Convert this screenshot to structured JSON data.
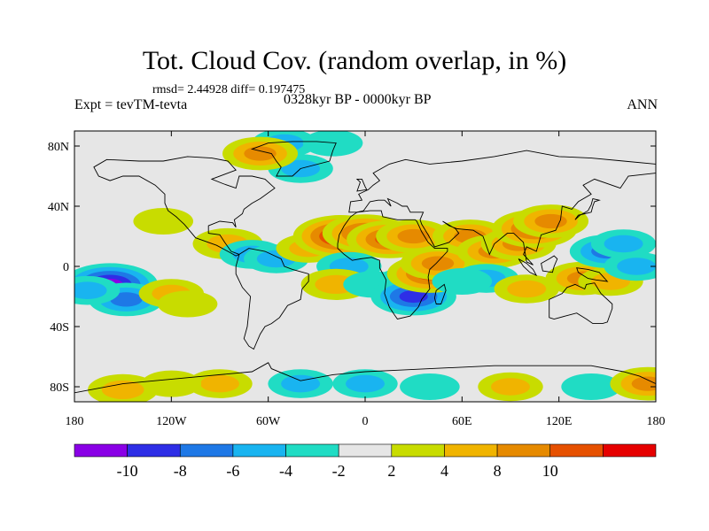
{
  "header": {
    "title": "Tot. Cloud Cov. (random overlap, in %)",
    "stats": "rmsd= 2.44928 diff= 0.197475",
    "experiment": "Expt = tevTM-tevta",
    "period": "0328kyr BP - 0000kyr BP",
    "season": "ANN"
  },
  "colors": {
    "background": "#e6e6e6",
    "coastline": "#000000",
    "levels": [
      "#8a00e6",
      "#2e2ee6",
      "#1e78e6",
      "#19b4f0",
      "#20dcc4",
      "#e6e6e6",
      "#c8dc00",
      "#f0b400",
      "#e68a00",
      "#e65000",
      "#e60000"
    ]
  },
  "chart_data": {
    "type": "heatmap",
    "title": "Tot. Cloud Cov. (random overlap, in %)",
    "x_ticks": [
      "180",
      "120W",
      "60W",
      "0",
      "60E",
      "120E",
      "180"
    ],
    "y_ticks": [
      "80N",
      "40N",
      "0",
      "40S",
      "80S"
    ],
    "xlim": [
      -180,
      180
    ],
    "ylim": [
      -90,
      90
    ],
    "colorbar_labels": [
      "-10",
      "-8",
      "-6",
      "-4",
      "-2",
      "2",
      "4",
      "8",
      "10"
    ],
    "colorbar_bounds": [
      -12,
      -10,
      -8,
      -6,
      -4,
      -2,
      2,
      4,
      6,
      8,
      10,
      12
    ],
    "anomalies": [
      {
        "lon": -158,
        "lat": -12,
        "value": -10
      },
      {
        "lon": -148,
        "lat": -22,
        "value": -6
      },
      {
        "lon": -172,
        "lat": -16,
        "value": -4
      },
      {
        "lon": -120,
        "lat": -18,
        "value": 4
      },
      {
        "lon": -110,
        "lat": -25,
        "value": 3
      },
      {
        "lon": -125,
        "lat": 30,
        "value": 3
      },
      {
        "lon": -85,
        "lat": 15,
        "value": 5
      },
      {
        "lon": -70,
        "lat": 8,
        "value": -4
      },
      {
        "lon": -55,
        "lat": 5,
        "value": -4
      },
      {
        "lon": -35,
        "lat": 12,
        "value": 4
      },
      {
        "lon": -15,
        "lat": 20,
        "value": 10
      },
      {
        "lon": 0,
        "lat": 22,
        "value": 8
      },
      {
        "lon": 15,
        "lat": 18,
        "value": 8
      },
      {
        "lon": 30,
        "lat": 20,
        "value": 6
      },
      {
        "lon": -10,
        "lat": 0,
        "value": -4
      },
      {
        "lon": -18,
        "lat": -12,
        "value": 5
      },
      {
        "lon": 5,
        "lat": -12,
        "value": -3
      },
      {
        "lon": 25,
        "lat": -10,
        "value": -3
      },
      {
        "lon": 30,
        "lat": -20,
        "value": -8
      },
      {
        "lon": 40,
        "lat": -5,
        "value": 8
      },
      {
        "lon": 45,
        "lat": 2,
        "value": 6
      },
      {
        "lon": 65,
        "lat": 20,
        "value": 6
      },
      {
        "lon": 80,
        "lat": 10,
        "value": 6
      },
      {
        "lon": 95,
        "lat": 15,
        "value": 6
      },
      {
        "lon": 105,
        "lat": 25,
        "value": 8
      },
      {
        "lon": 115,
        "lat": 30,
        "value": 6
      },
      {
        "lon": 75,
        "lat": -8,
        "value": -4
      },
      {
        "lon": 60,
        "lat": -10,
        "value": -3
      },
      {
        "lon": 100,
        "lat": -15,
        "value": 4
      },
      {
        "lon": 135,
        "lat": -8,
        "value": 6
      },
      {
        "lon": 152,
        "lat": -10,
        "value": 4
      },
      {
        "lon": 150,
        "lat": 10,
        "value": -6
      },
      {
        "lon": 160,
        "lat": 15,
        "value": -4
      },
      {
        "lon": 168,
        "lat": 0,
        "value": -4
      },
      {
        "lon": -40,
        "lat": 65,
        "value": -4
      },
      {
        "lon": -50,
        "lat": 82,
        "value": -4
      },
      {
        "lon": -20,
        "lat": 82,
        "value": -3
      },
      {
        "lon": -65,
        "lat": 75,
        "value": 6
      },
      {
        "lon": -90,
        "lat": -78,
        "value": 4
      },
      {
        "lon": -120,
        "lat": -78,
        "value": 3
      },
      {
        "lon": -150,
        "lat": -82,
        "value": 5
      },
      {
        "lon": -40,
        "lat": -78,
        "value": -4
      },
      {
        "lon": 0,
        "lat": -78,
        "value": -4
      },
      {
        "lon": 40,
        "lat": -80,
        "value": -3
      },
      {
        "lon": 90,
        "lat": -80,
        "value": 4
      },
      {
        "lon": 140,
        "lat": -80,
        "value": -3
      },
      {
        "lon": 175,
        "lat": -78,
        "value": 6
      }
    ]
  }
}
